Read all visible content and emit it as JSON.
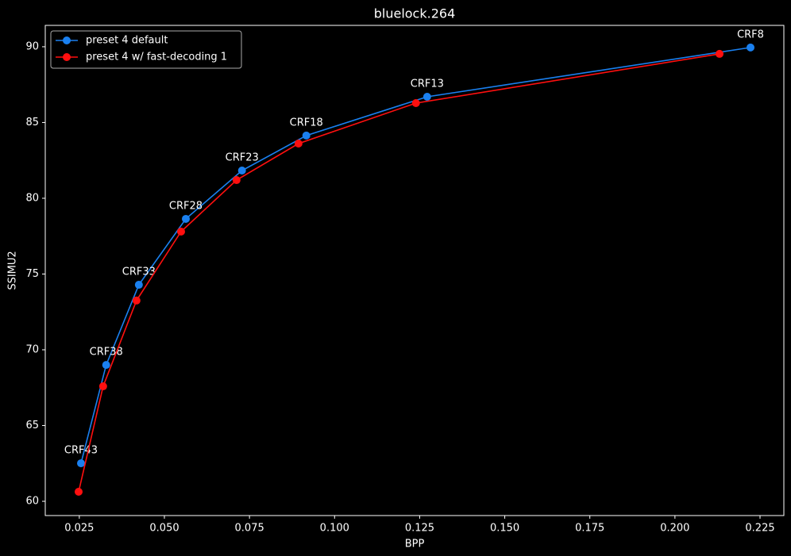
{
  "chart_data": {
    "type": "line",
    "title": "bluelock.264",
    "x_label": "BPP",
    "y_label": "SSIMU2",
    "background": "#000000",
    "legend": "upper left",
    "xlim": [
      0.015,
      0.232
    ],
    "ylim": [
      59.06,
      91.41
    ],
    "xticks": [
      0.025,
      {
        "value": 0.05,
        "label": "0.050"
      },
      0.075,
      {
        "value": 0.1,
        "label": "0.100"
      },
      0.125,
      {
        "value": 0.15,
        "label": "0.150"
      },
      0.175,
      {
        "value": 0.2,
        "label": "0.200"
      },
      0.225
    ],
    "yticks": [
      60,
      65,
      70,
      75,
      80,
      85,
      90
    ],
    "series": [
      {
        "name": "preset 4 default",
        "color": "#1a80f0",
        "x": [
          0.0255,
          0.0329,
          0.0425,
          0.0563,
          0.0728,
          0.0917,
          0.1272,
          0.2222
        ],
        "values": [
          62.51,
          69.0,
          74.29,
          78.64,
          81.83,
          84.14,
          86.7,
          89.95
        ],
        "point_labels": [
          "CRF43",
          "CRF38",
          "CRF33",
          "CRF28",
          "CRF23",
          "CRF18",
          "CRF13",
          "CRF8"
        ]
      },
      {
        "name": "preset 4 w/ fast-decoding 1",
        "color": "#ff0f0f",
        "x": [
          0.0248,
          0.032,
          0.0418,
          0.0549,
          0.0712,
          0.0894,
          0.1239,
          0.2131
        ],
        "values": [
          60.63,
          67.59,
          73.25,
          77.8,
          81.2,
          83.61,
          86.28,
          89.53
        ]
      }
    ]
  }
}
